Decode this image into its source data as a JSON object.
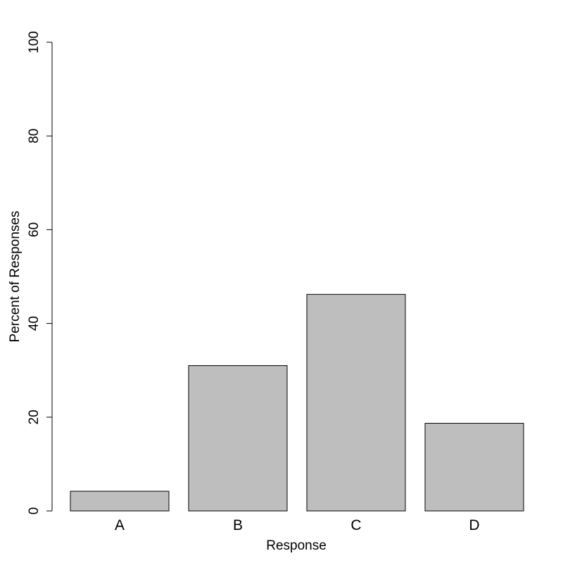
{
  "chart_data": {
    "type": "bar",
    "categories": [
      "A",
      "B",
      "C",
      "D"
    ],
    "values": [
      4.2,
      31.0,
      46.2,
      18.7
    ],
    "xlabel": "Response",
    "ylabel": "Percent of Responses",
    "ylim": [
      0,
      100
    ],
    "yticks": [
      0,
      20,
      40,
      60,
      80,
      100
    ],
    "grid": false,
    "legend": "none",
    "colors": {
      "bar_fill": "#bebebe",
      "bar_stroke": "#000000"
    }
  }
}
